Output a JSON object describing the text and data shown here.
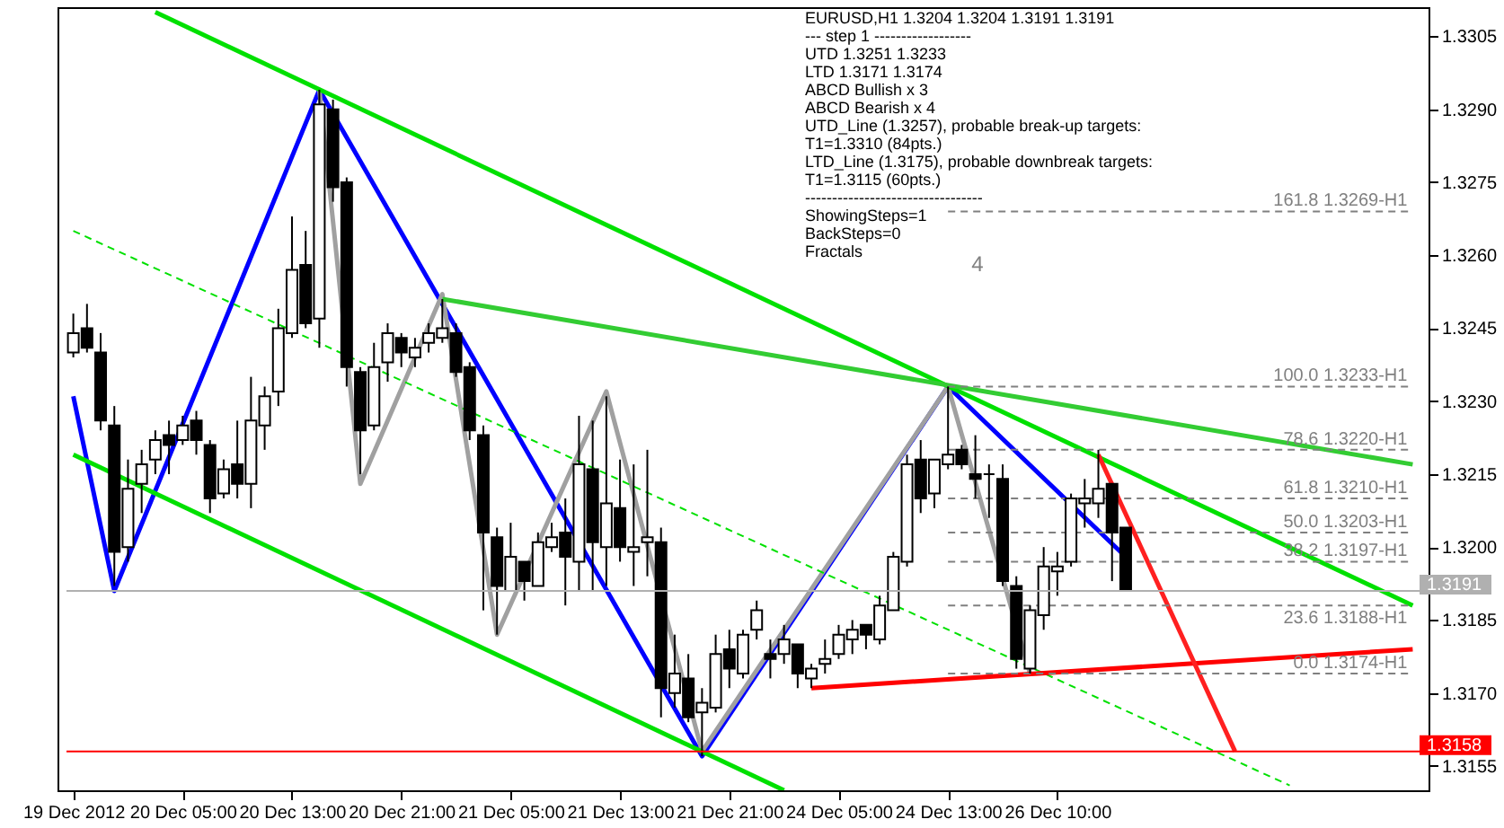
{
  "chart_data": {
    "type": "candlestick",
    "categories": [
      "19 Dec 2012",
      null,
      null,
      null,
      null,
      null,
      null,
      null,
      "20 Dec 05:00",
      null,
      null,
      null,
      null,
      null,
      null,
      null,
      "20 Dec 13:00",
      null,
      null,
      null,
      null,
      null,
      null,
      null,
      "20 Dec 21:00",
      null,
      null,
      null,
      null,
      null,
      null,
      null,
      "21 Dec 05:00",
      null,
      null,
      null,
      null,
      null,
      null,
      null,
      "21 Dec 13:00",
      null,
      null,
      null,
      null,
      null,
      null,
      null,
      "21 Dec 21:00",
      null,
      null,
      null,
      null,
      null,
      null,
      null,
      "24 Dec 05:00",
      null,
      null,
      null,
      null,
      null,
      null,
      null,
      "24 Dec 13:00",
      null,
      null,
      null,
      null,
      null,
      null,
      null,
      "26 Dec 10:00",
      null,
      null,
      null,
      null,
      null,
      null,
      null,
      null,
      null,
      null,
      null,
      null,
      null,
      null,
      null,
      null,
      null,
      null,
      null,
      null,
      null,
      null,
      null,
      null,
      null,
      null
    ],
    "ohlc": [
      [
        1.324,
        1.3248,
        1.3239,
        1.3244
      ],
      [
        1.3245,
        1.325,
        1.324,
        1.3241
      ],
      [
        1.324,
        1.3244,
        1.3224,
        1.3226
      ],
      [
        1.3225,
        1.3229,
        1.3192,
        1.3199
      ],
      [
        1.32,
        1.3218,
        1.3197,
        1.3212
      ],
      [
        1.3213,
        1.322,
        1.3207,
        1.3217
      ],
      [
        1.3218,
        1.3224,
        1.3215,
        1.3222
      ],
      [
        1.3223,
        1.3226,
        1.3215,
        1.3221
      ],
      [
        1.3222,
        1.3227,
        1.3221,
        1.3225
      ],
      [
        1.3226,
        1.3228,
        1.3219,
        1.3222
      ],
      [
        1.3221,
        1.3222,
        1.3207,
        1.321
      ],
      [
        1.3211,
        1.3218,
        1.321,
        1.3216
      ],
      [
        1.3217,
        1.3226,
        1.321,
        1.3213
      ],
      [
        1.3213,
        1.3235,
        1.3208,
        1.3226
      ],
      [
        1.3225,
        1.3233,
        1.322,
        1.3231
      ],
      [
        1.3232,
        1.3249,
        1.3229,
        1.3245
      ],
      [
        1.3244,
        1.3268,
        1.3243,
        1.3257
      ],
      [
        1.3258,
        1.3265,
        1.3245,
        1.3246
      ],
      [
        1.3247,
        1.3294,
        1.3241,
        1.3291
      ],
      [
        1.329,
        1.3292,
        1.3271,
        1.3274
      ],
      [
        1.3275,
        1.3276,
        1.3233,
        1.3237
      ],
      [
        1.3236,
        1.3237,
        1.3215,
        1.3224
      ],
      [
        1.3225,
        1.3242,
        1.3224,
        1.3237
      ],
      [
        1.3238,
        1.3246,
        1.3234,
        1.3244
      ],
      [
        1.3243,
        1.3244,
        1.3237,
        1.324
      ],
      [
        1.3239,
        1.3243,
        1.3237,
        1.3241
      ],
      [
        1.3242,
        1.3246,
        1.324,
        1.3244
      ],
      [
        1.3243,
        1.3251,
        1.3242,
        1.3245
      ],
      [
        1.3244,
        1.3246,
        1.3235,
        1.3236
      ],
      [
        1.3237,
        1.3238,
        1.3222,
        1.3224
      ],
      [
        1.3223,
        1.3225,
        1.3187,
        1.3203
      ],
      [
        1.3202,
        1.3204,
        1.3182,
        1.3192
      ],
      [
        1.3191,
        1.3205,
        1.3191,
        1.3198
      ],
      [
        1.3197,
        1.3197,
        1.3189,
        1.3193
      ],
      [
        1.3192,
        1.3203,
        1.3192,
        1.3201
      ],
      [
        1.32,
        1.3205,
        1.3199,
        1.3202
      ],
      [
        1.3203,
        1.321,
        1.3188,
        1.3198
      ],
      [
        1.3197,
        1.3227,
        1.3191,
        1.3217
      ],
      [
        1.3216,
        1.3226,
        1.3191,
        1.3201
      ],
      [
        1.32,
        1.3231,
        1.3192,
        1.3209
      ],
      [
        1.3208,
        1.3218,
        1.3197,
        1.32
      ],
      [
        1.3199,
        1.3217,
        1.3192,
        1.32
      ],
      [
        1.3201,
        1.322,
        1.3194,
        1.3202
      ],
      [
        1.3201,
        1.3204,
        1.3165,
        1.3171
      ],
      [
        1.317,
        1.3182,
        1.3167,
        1.3174
      ],
      [
        1.3173,
        1.3178,
        1.3164,
        1.3165
      ],
      [
        1.3166,
        1.3171,
        1.3157,
        1.3168
      ],
      [
        1.3167,
        1.3182,
        1.3166,
        1.3178
      ],
      [
        1.3179,
        1.3183,
        1.3171,
        1.3175
      ],
      [
        1.3174,
        1.3183,
        1.3173,
        1.3182
      ],
      [
        1.3183,
        1.3189,
        1.3181,
        1.3187
      ],
      [
        1.3178,
        1.3181,
        1.3173,
        1.3177
      ],
      [
        1.3178,
        1.3184,
        1.3176,
        1.3181
      ],
      [
        1.318,
        1.318,
        1.3171,
        1.3174
      ],
      [
        1.3173,
        1.3176,
        1.3171,
        1.3175
      ],
      [
        1.3176,
        1.3181,
        1.3174,
        1.3177
      ],
      [
        1.3178,
        1.3184,
        1.3177,
        1.3182
      ],
      [
        1.3181,
        1.3185,
        1.3178,
        1.3183
      ],
      [
        1.3184,
        1.3184,
        1.3179,
        1.3182
      ],
      [
        1.3181,
        1.319,
        1.318,
        1.3188
      ],
      [
        1.3187,
        1.3199,
        1.3187,
        1.3198
      ],
      [
        1.3197,
        1.3219,
        1.3196,
        1.3217
      ],
      [
        1.3218,
        1.3222,
        1.3207,
        1.321
      ],
      [
        1.3211,
        1.3218,
        1.3208,
        1.3218
      ],
      [
        1.3217,
        1.3233,
        1.3216,
        1.3219
      ],
      [
        1.322,
        1.3221,
        1.3216,
        1.3217
      ],
      [
        1.3215,
        1.3223,
        1.321,
        1.3214
      ],
      [
        1.3215,
        1.3217,
        1.3206,
        1.3215
      ],
      [
        1.3214,
        1.3217,
        1.3192,
        1.3193
      ],
      [
        1.3192,
        1.3194,
        1.3175,
        1.3177
      ],
      [
        1.3175,
        1.3188,
        1.3174,
        1.3187
      ],
      [
        1.3186,
        1.32,
        1.3183,
        1.3196
      ],
      [
        1.3195,
        1.3199,
        1.319,
        1.3196
      ],
      [
        1.3197,
        1.3211,
        1.3196,
        1.321
      ],
      [
        1.3209,
        1.3214,
        1.3204,
        1.321
      ],
      [
        1.3209,
        1.322,
        1.3206,
        1.3212
      ],
      [
        1.3213,
        1.3213,
        1.3193,
        1.3203
      ],
      [
        1.3204,
        1.3204,
        1.3191,
        1.3191
      ],
      null,
      null,
      null,
      null,
      null,
      null,
      null,
      null,
      null,
      null,
      null,
      null,
      null,
      null,
      null,
      null,
      null,
      null,
      null,
      null,
      null
    ],
    "ylim": [
      1.315,
      1.3311
    ],
    "yticks": [
      {
        "value": 1.3155,
        "label": "1.3155"
      },
      {
        "value": 1.317,
        "label": "1.3170"
      },
      {
        "value": 1.3185,
        "label": "1.3185"
      },
      {
        "value": 1.32,
        "label": "1.3200"
      },
      {
        "value": 1.3215,
        "label": "1.3215"
      },
      {
        "value": 1.323,
        "label": "1.3230"
      },
      {
        "value": 1.3245,
        "label": "1.3245"
      },
      {
        "value": 1.326,
        "label": "1.3260"
      },
      {
        "value": 1.3275,
        "label": "1.3275"
      },
      {
        "value": 1.329,
        "label": "1.3290"
      },
      {
        "value": 1.3305,
        "label": "1.3305"
      }
    ],
    "series": [
      {
        "type": "line",
        "color": "#0000ff",
        "values": [
          1.3231,
          null,
          null,
          1.3191,
          null,
          null,
          null,
          null,
          null,
          null,
          null,
          null,
          null,
          null,
          null,
          null,
          null,
          null,
          1.3294,
          null,
          null,
          null,
          null,
          null,
          null,
          null,
          null,
          null,
          null,
          null,
          null,
          null,
          null,
          null,
          null,
          null,
          null,
          null,
          null,
          null,
          null,
          null,
          null,
          null,
          null,
          null,
          1.3157,
          null,
          null,
          null,
          null,
          null,
          null,
          null,
          null,
          null,
          null,
          null,
          null,
          null,
          null,
          null,
          null,
          null,
          1.3233,
          null,
          null,
          null,
          null,
          null,
          null,
          null,
          null,
          null,
          null,
          null,
          null,
          1.3198,
          null,
          null,
          null,
          null,
          null,
          null,
          null,
          null,
          null,
          null,
          null,
          null,
          null,
          null,
          null,
          null,
          null,
          null,
          null,
          null,
          null
        ]
      },
      {
        "type": "line",
        "color": "#a0a0a0",
        "values": [
          null,
          null,
          null,
          null,
          null,
          null,
          null,
          null,
          null,
          null,
          null,
          null,
          null,
          null,
          null,
          null,
          null,
          null,
          1.3294,
          null,
          null,
          1.3213,
          null,
          null,
          null,
          null,
          null,
          1.3252,
          null,
          null,
          null,
          1.3182,
          null,
          null,
          null,
          null,
          null,
          null,
          null,
          1.3232,
          null,
          null,
          null,
          null,
          null,
          null,
          1.3158,
          null,
          null,
          null,
          null,
          null,
          null,
          null,
          null,
          null,
          null,
          null,
          null,
          null,
          null,
          null,
          null,
          null,
          1.3233,
          null,
          null,
          null,
          null,
          null,
          1.3174,
          null,
          null,
          null,
          null,
          null,
          null,
          null,
          null,
          null,
          null,
          null,
          null,
          null,
          null,
          null,
          null,
          null,
          null,
          null,
          null,
          null,
          null,
          null,
          null,
          null,
          null,
          null,
          null
        ]
      },
      {
        "type": "line",
        "color": "#00e000",
        "values": [
          null,
          null,
          null,
          null,
          null,
          null,
          1.331,
          null,
          null,
          null,
          null,
          null,
          null,
          null,
          null,
          null,
          null,
          null,
          null,
          null,
          null,
          null,
          null,
          null,
          null,
          null,
          null,
          null,
          null,
          null,
          null,
          null,
          null,
          null,
          null,
          null,
          null,
          null,
          null,
          null,
          null,
          null,
          null,
          null,
          null,
          null,
          null,
          null,
          null,
          null,
          null,
          null,
          null,
          null,
          null,
          null,
          null,
          null,
          null,
          null,
          null,
          null,
          null,
          null,
          null,
          null,
          null,
          null,
          null,
          null,
          null,
          null,
          null,
          null,
          null,
          null,
          null,
          null,
          null,
          null,
          null,
          null,
          null,
          null,
          null,
          null,
          null,
          null,
          null,
          null,
          null,
          null,
          null,
          null,
          null,
          null,
          null,
          null,
          1.3188
        ]
      },
      {
        "type": "line",
        "color": "#00e000",
        "values": [
          1.3219,
          null,
          null,
          null,
          null,
          null,
          null,
          null,
          null,
          null,
          null,
          null,
          null,
          null,
          null,
          null,
          null,
          null,
          null,
          null,
          null,
          null,
          null,
          null,
          null,
          null,
          null,
          null,
          null,
          null,
          null,
          null,
          null,
          null,
          null,
          null,
          null,
          null,
          null,
          null,
          null,
          null,
          null,
          null,
          null,
          null,
          null,
          null,
          null,
          null,
          null,
          null,
          1.315,
          null,
          null,
          null,
          null,
          null,
          null,
          null,
          null,
          null,
          null,
          null,
          null,
          null,
          null,
          null,
          null,
          null,
          null,
          null,
          null,
          null,
          null,
          null,
          null,
          null,
          null,
          null,
          null,
          null,
          null,
          null,
          null,
          null,
          null,
          null,
          null,
          null,
          null,
          null,
          null,
          null,
          null,
          null,
          null,
          null,
          null
        ]
      },
      {
        "type": "line",
        "color": "#00e000",
        "line_style": "dashed",
        "values": [
          1.3265,
          null,
          null,
          null,
          null,
          null,
          null,
          null,
          null,
          null,
          null,
          null,
          null,
          null,
          null,
          null,
          null,
          null,
          null,
          null,
          null,
          null,
          null,
          null,
          null,
          null,
          null,
          null,
          null,
          null,
          null,
          null,
          null,
          null,
          null,
          null,
          null,
          null,
          null,
          null,
          null,
          null,
          null,
          null,
          null,
          null,
          null,
          null,
          null,
          null,
          null,
          null,
          null,
          null,
          null,
          null,
          null,
          null,
          null,
          null,
          null,
          null,
          null,
          null,
          null,
          null,
          null,
          null,
          null,
          null,
          null,
          null,
          null,
          null,
          null,
          null,
          null,
          null,
          null,
          null,
          null,
          null,
          null,
          null,
          null,
          null,
          null,
          null,
          null,
          1.3151,
          null,
          null,
          null,
          null,
          null,
          null,
          null,
          null,
          null
        ]
      },
      {
        "type": "line",
        "color": "#33cc33",
        "values": [
          null,
          null,
          null,
          null,
          null,
          null,
          null,
          null,
          null,
          null,
          null,
          null,
          null,
          null,
          null,
          null,
          null,
          null,
          null,
          null,
          null,
          null,
          null,
          null,
          null,
          null,
          null,
          1.3251,
          null,
          null,
          null,
          null,
          null,
          null,
          null,
          null,
          null,
          null,
          null,
          null,
          null,
          null,
          null,
          null,
          null,
          null,
          null,
          null,
          null,
          null,
          null,
          null,
          null,
          null,
          null,
          null,
          null,
          null,
          null,
          null,
          null,
          null,
          null,
          null,
          null,
          null,
          null,
          null,
          null,
          null,
          null,
          null,
          null,
          null,
          null,
          null,
          null,
          null,
          null,
          null,
          null,
          null,
          null,
          null,
          null,
          null,
          null,
          null,
          null,
          null,
          null,
          null,
          null,
          null,
          null,
          null,
          null,
          null,
          1.3217
        ]
      },
      {
        "type": "line",
        "color": "#ff0000",
        "values": [
          null,
          null,
          null,
          null,
          null,
          null,
          null,
          null,
          null,
          null,
          null,
          null,
          null,
          null,
          null,
          null,
          null,
          null,
          null,
          null,
          null,
          null,
          null,
          null,
          null,
          null,
          null,
          null,
          null,
          null,
          null,
          null,
          null,
          null,
          null,
          null,
          null,
          null,
          null,
          null,
          null,
          null,
          null,
          null,
          null,
          null,
          null,
          null,
          null,
          null,
          null,
          null,
          null,
          null,
          1.3171,
          null,
          null,
          null,
          null,
          null,
          null,
          null,
          null,
          null,
          null,
          null,
          null,
          null,
          null,
          null,
          null,
          null,
          null,
          null,
          null,
          null,
          null,
          null,
          null,
          null,
          null,
          null,
          null,
          null,
          null,
          null,
          null,
          null,
          null,
          null,
          null,
          null,
          null,
          null,
          null,
          null,
          null,
          null,
          1.3179
        ]
      },
      {
        "type": "line",
        "color": "#ff2020",
        "values": [
          null,
          null,
          null,
          null,
          null,
          null,
          null,
          null,
          null,
          null,
          null,
          null,
          null,
          null,
          null,
          null,
          null,
          null,
          null,
          null,
          null,
          null,
          null,
          null,
          null,
          null,
          null,
          null,
          null,
          null,
          null,
          null,
          null,
          null,
          null,
          null,
          null,
          null,
          null,
          null,
          null,
          null,
          null,
          null,
          null,
          null,
          null,
          null,
          null,
          null,
          null,
          null,
          null,
          null,
          null,
          null,
          null,
          null,
          null,
          null,
          null,
          null,
          null,
          null,
          null,
          null,
          null,
          null,
          null,
          null,
          null,
          null,
          null,
          null,
          null,
          1.3219,
          null,
          null,
          null,
          null,
          null,
          null,
          null,
          null,
          null,
          1.3158,
          null,
          null,
          null,
          null,
          null,
          null,
          null,
          null,
          null,
          null,
          null,
          null,
          null
        ]
      },
      {
        "type": "line",
        "name": "161.8 1.3269-H1",
        "color": "#808080",
        "line_style": "dashed",
        "values": [
          null,
          null,
          null,
          null,
          null,
          null,
          null,
          null,
          null,
          null,
          null,
          null,
          null,
          null,
          null,
          null,
          null,
          null,
          null,
          null,
          null,
          null,
          null,
          null,
          null,
          null,
          null,
          null,
          null,
          null,
          null,
          null,
          null,
          null,
          null,
          null,
          null,
          null,
          null,
          null,
          null,
          null,
          null,
          null,
          null,
          null,
          null,
          null,
          null,
          null,
          null,
          null,
          null,
          null,
          null,
          null,
          null,
          null,
          null,
          null,
          null,
          null,
          null,
          null,
          1.3269,
          null,
          null,
          null,
          null,
          null,
          null,
          null,
          null,
          null,
          null,
          null,
          null,
          null,
          null,
          null,
          null,
          null,
          null,
          null,
          null,
          null,
          null,
          null,
          null,
          null,
          null,
          null,
          null,
          null,
          null,
          null,
          null,
          null,
          1.3269
        ]
      },
      {
        "type": "line",
        "name": "100.0 1.3233-H1",
        "color": "#808080",
        "line_style": "dashed",
        "values": [
          null,
          null,
          null,
          null,
          null,
          null,
          null,
          null,
          null,
          null,
          null,
          null,
          null,
          null,
          null,
          null,
          null,
          null,
          null,
          null,
          null,
          null,
          null,
          null,
          null,
          null,
          null,
          null,
          null,
          null,
          null,
          null,
          null,
          null,
          null,
          null,
          null,
          null,
          null,
          null,
          null,
          null,
          null,
          null,
          null,
          null,
          null,
          null,
          null,
          null,
          null,
          null,
          null,
          null,
          null,
          null,
          null,
          null,
          null,
          null,
          null,
          null,
          null,
          null,
          1.3233,
          null,
          null,
          null,
          null,
          null,
          null,
          null,
          null,
          null,
          null,
          null,
          null,
          null,
          null,
          null,
          null,
          null,
          null,
          null,
          null,
          null,
          null,
          null,
          null,
          null,
          null,
          null,
          null,
          null,
          null,
          null,
          null,
          null,
          1.3233
        ]
      },
      {
        "type": "line",
        "name": "78.6 1.3220-H1",
        "color": "#808080",
        "line_style": "dashed",
        "values": [
          null,
          null,
          null,
          null,
          null,
          null,
          null,
          null,
          null,
          null,
          null,
          null,
          null,
          null,
          null,
          null,
          null,
          null,
          null,
          null,
          null,
          null,
          null,
          null,
          null,
          null,
          null,
          null,
          null,
          null,
          null,
          null,
          null,
          null,
          null,
          null,
          null,
          null,
          null,
          null,
          null,
          null,
          null,
          null,
          null,
          null,
          null,
          null,
          null,
          null,
          null,
          null,
          null,
          null,
          null,
          null,
          null,
          null,
          null,
          null,
          null,
          null,
          null,
          null,
          1.322,
          null,
          null,
          null,
          null,
          null,
          null,
          null,
          null,
          null,
          null,
          null,
          null,
          null,
          null,
          null,
          null,
          null,
          null,
          null,
          null,
          null,
          null,
          null,
          null,
          null,
          null,
          null,
          null,
          null,
          null,
          null,
          null,
          null,
          1.322
        ]
      },
      {
        "type": "line",
        "name": "61.8 1.3210-H1",
        "color": "#808080",
        "line_style": "dashed",
        "values": [
          null,
          null,
          null,
          null,
          null,
          null,
          null,
          null,
          null,
          null,
          null,
          null,
          null,
          null,
          null,
          null,
          null,
          null,
          null,
          null,
          null,
          null,
          null,
          null,
          null,
          null,
          null,
          null,
          null,
          null,
          null,
          null,
          null,
          null,
          null,
          null,
          null,
          null,
          null,
          null,
          null,
          null,
          null,
          null,
          null,
          null,
          null,
          null,
          null,
          null,
          null,
          null,
          null,
          null,
          null,
          null,
          null,
          null,
          null,
          null,
          null,
          null,
          null,
          null,
          1.321,
          null,
          null,
          null,
          null,
          null,
          null,
          null,
          null,
          null,
          null,
          null,
          null,
          null,
          null,
          null,
          null,
          null,
          null,
          null,
          null,
          null,
          null,
          null,
          null,
          null,
          null,
          null,
          null,
          null,
          null,
          null,
          null,
          null,
          1.321
        ]
      },
      {
        "type": "line",
        "name": "50.0 1.3203-H1",
        "color": "#808080",
        "line_style": "dashed",
        "values": [
          null,
          null,
          null,
          null,
          null,
          null,
          null,
          null,
          null,
          null,
          null,
          null,
          null,
          null,
          null,
          null,
          null,
          null,
          null,
          null,
          null,
          null,
          null,
          null,
          null,
          null,
          null,
          null,
          null,
          null,
          null,
          null,
          null,
          null,
          null,
          null,
          null,
          null,
          null,
          null,
          null,
          null,
          null,
          null,
          null,
          null,
          null,
          null,
          null,
          null,
          null,
          null,
          null,
          null,
          null,
          null,
          null,
          null,
          null,
          null,
          null,
          null,
          null,
          null,
          1.3203,
          null,
          null,
          null,
          null,
          null,
          null,
          null,
          null,
          null,
          null,
          null,
          null,
          null,
          null,
          null,
          null,
          null,
          null,
          null,
          null,
          null,
          null,
          null,
          null,
          null,
          null,
          null,
          null,
          null,
          null,
          null,
          null,
          null,
          1.3203
        ]
      },
      {
        "type": "line",
        "name": "38.2 1.3197-H1",
        "color": "#808080",
        "line_style": "dashed",
        "values": [
          null,
          null,
          null,
          null,
          null,
          null,
          null,
          null,
          null,
          null,
          null,
          null,
          null,
          null,
          null,
          null,
          null,
          null,
          null,
          null,
          null,
          null,
          null,
          null,
          null,
          null,
          null,
          null,
          null,
          null,
          null,
          null,
          null,
          null,
          null,
          null,
          null,
          null,
          null,
          null,
          null,
          null,
          null,
          null,
          null,
          null,
          null,
          null,
          null,
          null,
          null,
          null,
          null,
          null,
          null,
          null,
          null,
          null,
          null,
          null,
          null,
          null,
          null,
          null,
          1.3197,
          null,
          null,
          null,
          null,
          null,
          null,
          null,
          null,
          null,
          null,
          null,
          null,
          null,
          null,
          null,
          null,
          null,
          null,
          null,
          null,
          null,
          null,
          null,
          null,
          null,
          null,
          null,
          null,
          null,
          null,
          null,
          null,
          null,
          1.3197
        ]
      },
      {
        "type": "line",
        "name": "23.6 1.3188-H1",
        "color": "#808080",
        "line_style": "dashed",
        "values": [
          null,
          null,
          null,
          null,
          null,
          null,
          null,
          null,
          null,
          null,
          null,
          null,
          null,
          null,
          null,
          null,
          null,
          null,
          null,
          null,
          null,
          null,
          null,
          null,
          null,
          null,
          null,
          null,
          null,
          null,
          null,
          null,
          null,
          null,
          null,
          null,
          null,
          null,
          null,
          null,
          null,
          null,
          null,
          null,
          null,
          null,
          null,
          null,
          null,
          null,
          null,
          null,
          null,
          null,
          null,
          null,
          null,
          null,
          null,
          null,
          null,
          null,
          null,
          null,
          1.3188,
          null,
          null,
          null,
          null,
          null,
          null,
          null,
          null,
          null,
          null,
          null,
          null,
          null,
          null,
          null,
          null,
          null,
          null,
          null,
          null,
          null,
          null,
          null,
          null,
          null,
          null,
          null,
          null,
          null,
          null,
          null,
          null,
          null,
          1.3188
        ]
      },
      {
        "type": "line",
        "name": "0.0 1.3174-H1",
        "color": "#808080",
        "line_style": "dashed",
        "values": [
          null,
          null,
          null,
          null,
          null,
          null,
          null,
          null,
          null,
          null,
          null,
          null,
          null,
          null,
          null,
          null,
          null,
          null,
          null,
          null,
          null,
          null,
          null,
          null,
          null,
          null,
          null,
          null,
          null,
          null,
          null,
          null,
          null,
          null,
          null,
          null,
          null,
          null,
          null,
          null,
          null,
          null,
          null,
          null,
          null,
          null,
          null,
          null,
          null,
          null,
          null,
          null,
          null,
          null,
          null,
          null,
          null,
          null,
          null,
          null,
          null,
          null,
          null,
          null,
          1.3174,
          null,
          null,
          null,
          null,
          null,
          null,
          null,
          null,
          null,
          null,
          null,
          null,
          null,
          null,
          null,
          null,
          null,
          null,
          null,
          null,
          null,
          null,
          null,
          null,
          null,
          null,
          null,
          null,
          null,
          null,
          null,
          null,
          null,
          1.3174
        ]
      }
    ],
    "ref_lines": [
      {
        "axis": "y",
        "value": 1.3191,
        "label": "1.3191",
        "color": "#b0b0b0"
      },
      {
        "axis": "y",
        "value": 1.3158,
        "label": "1.3158",
        "color": "#ff0000"
      }
    ],
    "annotations": [
      "EURUSD,H1  1.3204 1.3204 1.3191 1.3191",
      "---   step 1   ------------------",
      "UTD 1.3251  1.3233",
      "LTD  1.3171  1.3174",
      "ABCD Bullish x 3",
      "ABCD Bearish x 4",
      "UTD_Line (1.3257), probable break-up targets:",
      "T1=1.3310 (84pts.)",
      "LTD_Line (1.3175), probable downbreak targets:",
      "T1=1.3115 (60pts.)",
      "---------------------------------",
      "ShowingSteps=1",
      "BackSteps=0",
      "Fractals",
      "4"
    ],
    "grid": false
  }
}
